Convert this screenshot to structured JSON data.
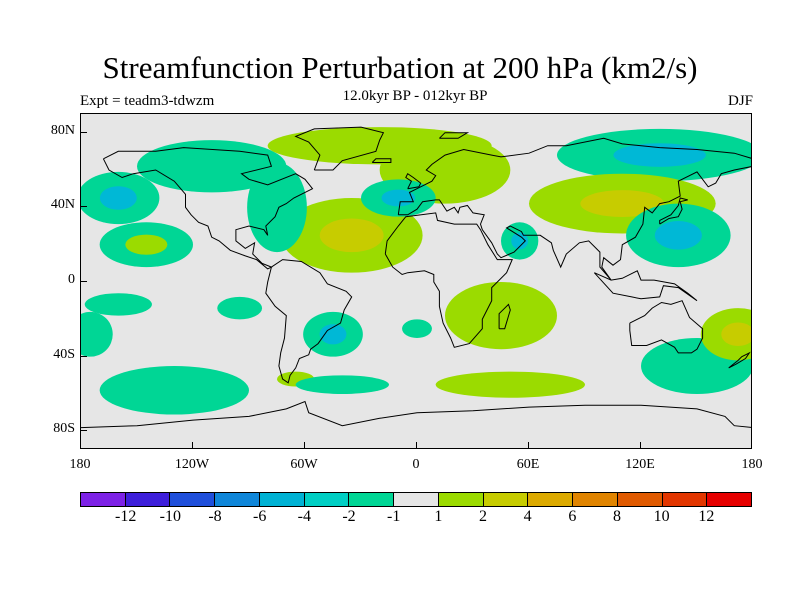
{
  "map": {
    "title": "Streamfunction Perturbation at 200 hPa (km2/s)",
    "subtitle": "12.0kyr BP - 012kyr BP",
    "experiment": "Expt = teadm3-tdwzm",
    "season": "DJF",
    "projection": "cylindrical equidistant",
    "lon_range": [
      -180,
      180
    ],
    "lat_range": [
      -90,
      90
    ],
    "background_color": "#e6e6e6",
    "y_ticks": [
      {
        "lat": 80,
        "label": "80N"
      },
      {
        "lat": 40,
        "label": "40N"
      },
      {
        "lat": 0,
        "label": "0"
      },
      {
        "lat": -40,
        "label": "40S"
      },
      {
        "lat": -80,
        "label": "80S"
      }
    ],
    "x_ticks": [
      {
        "lon": -180,
        "label": "180"
      },
      {
        "lon": -120,
        "label": "120W"
      },
      {
        "lon": -60,
        "label": "60W"
      },
      {
        "lon": 0,
        "label": "0"
      },
      {
        "lon": 60,
        "label": "60E"
      },
      {
        "lon": 120,
        "label": "120E"
      },
      {
        "lon": 180,
        "label": "180"
      }
    ],
    "anomalies": [
      {
        "lon": -160,
        "lat": 45,
        "rx": 22,
        "ry": 14,
        "level": "-2",
        "core": "-4"
      },
      {
        "lon": -145,
        "lat": 20,
        "rx": 25,
        "ry": 12,
        "level": "-2",
        "core": "2"
      },
      {
        "lon": -160,
        "lat": -12,
        "rx": 18,
        "ry": 6,
        "level": "-2"
      },
      {
        "lon": -95,
        "lat": -14,
        "rx": 12,
        "ry": 6,
        "level": "-2"
      },
      {
        "lon": -130,
        "lat": -58,
        "rx": 40,
        "ry": 13,
        "level": "-2"
      },
      {
        "lon": -65,
        "lat": -52,
        "rx": 10,
        "ry": 4,
        "level": "2"
      },
      {
        "lon": -40,
        "lat": -55,
        "rx": 25,
        "ry": 5,
        "level": "-2"
      },
      {
        "lon": -45,
        "lat": -28,
        "rx": 16,
        "ry": 12,
        "level": "-2",
        "core": "-4"
      },
      {
        "lon": -35,
        "lat": 25,
        "rx": 38,
        "ry": 20,
        "level": "2",
        "core": "4"
      },
      {
        "lon": -75,
        "lat": 40,
        "rx": 16,
        "ry": 24,
        "level": "-2"
      },
      {
        "lon": -110,
        "lat": 62,
        "rx": 40,
        "ry": 14,
        "level": "-2"
      },
      {
        "lon": -20,
        "lat": 73,
        "rx": 60,
        "ry": 10,
        "level": "2"
      },
      {
        "lon": 15,
        "lat": 60,
        "rx": 35,
        "ry": 18,
        "level": "2"
      },
      {
        "lon": -10,
        "lat": 45,
        "rx": 20,
        "ry": 10,
        "level": "-2",
        "core": "-4"
      },
      {
        "lon": 130,
        "lat": 68,
        "rx": 55,
        "ry": 14,
        "level": "-2",
        "core": "-4"
      },
      {
        "lon": 110,
        "lat": 42,
        "rx": 50,
        "ry": 16,
        "level": "2",
        "core": "4"
      },
      {
        "lon": 140,
        "lat": 25,
        "rx": 28,
        "ry": 17,
        "level": "-2",
        "core": "-4"
      },
      {
        "lon": 55,
        "lat": 22,
        "rx": 10,
        "ry": 10,
        "level": "-2",
        "core": "-4"
      },
      {
        "lon": 45,
        "lat": -18,
        "rx": 30,
        "ry": 18,
        "level": "2"
      },
      {
        "lon": 0,
        "lat": -25,
        "rx": 8,
        "ry": 5,
        "level": "-2"
      },
      {
        "lon": 50,
        "lat": -55,
        "rx": 40,
        "ry": 7,
        "level": "2"
      },
      {
        "lon": 150,
        "lat": -45,
        "rx": 30,
        "ry": 15,
        "level": "-2"
      },
      {
        "lon": 172,
        "lat": -28,
        "rx": 20,
        "ry": 14,
        "level": "2",
        "core": "4"
      },
      {
        "lon": -175,
        "lat": -28,
        "rx": 12,
        "ry": 12,
        "level": "-2"
      }
    ]
  },
  "colorbar": {
    "colors": [
      "#7d22e6",
      "#3e1fdb",
      "#1f4fdb",
      "#0f86d9",
      "#00b2d4",
      "#00cfc4",
      "#00d695",
      "#e6e6e6",
      "#9bdb00",
      "#c7cc00",
      "#dcaa00",
      "#e08400",
      "#e05a00",
      "#e23600",
      "#e60000"
    ],
    "labels": [
      "-12",
      "-10",
      "-8",
      "-6",
      "-4",
      "-2",
      "-1",
      "1",
      "2",
      "4",
      "6",
      "8",
      "10",
      "12"
    ]
  },
  "level_colors": {
    "-4": "#00b8d6",
    "-2": "#00d695",
    "2": "#9bdb00",
    "4": "#c7cc00"
  },
  "coast_color": "#000000"
}
